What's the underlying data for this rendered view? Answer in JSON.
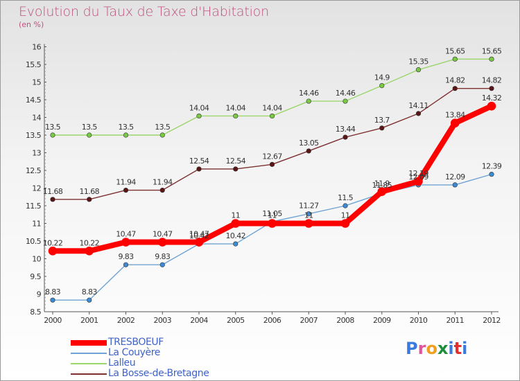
{
  "title": "Evolution du Taux de Taxe d'Habitation",
  "unit": "(en %)",
  "logo": "Proxiti",
  "logo_colors": [
    "#3a7be0",
    "#e0559b",
    "#f0a020",
    "#1c8f3a",
    "#3a7be0",
    "#e03030",
    "#3a7be0"
  ],
  "chart_data": {
    "type": "line",
    "x": [
      "2000",
      "2001",
      "2002",
      "2003",
      "2004",
      "2005",
      "2006",
      "2007",
      "2008",
      "2009",
      "2010",
      "2011",
      "2012"
    ],
    "ylim": [
      8.5,
      16
    ],
    "yticks": [
      "8.5",
      "9",
      "9.5",
      "10",
      "10.5",
      "11",
      "11.5",
      "12",
      "12.5",
      "13",
      "13.5",
      "14",
      "14.5",
      "15",
      "15.5",
      "16"
    ],
    "grid": false,
    "legend_position": "bottom-left",
    "series": [
      {
        "name": "TRESBOEUF",
        "color": "#ff0000",
        "marker": "#ff0000",
        "width": 8,
        "values": [
          10.22,
          10.22,
          10.47,
          10.47,
          10.47,
          11,
          11,
          11,
          11,
          11.9,
          12.19,
          13.84,
          14.32
        ]
      },
      {
        "name": "La Couyère",
        "color": "#6fa3d3",
        "marker": "#3c8ad2",
        "width": 1.4,
        "values": [
          8.83,
          8.83,
          9.83,
          9.83,
          10.42,
          10.42,
          11.05,
          11.27,
          11.5,
          11.85,
          12.09,
          12.09,
          12.39
        ]
      },
      {
        "name": "Lalleu",
        "color": "#9bd66b",
        "marker": "#7ac943",
        "width": 1.4,
        "values": [
          13.5,
          13.5,
          13.5,
          13.5,
          14.04,
          14.04,
          14.04,
          14.46,
          14.46,
          14.9,
          15.35,
          15.65,
          15.65
        ]
      },
      {
        "name": "La Bosse-de-Bretagne",
        "color": "#7d3030",
        "marker": "#5c1515",
        "width": 1.4,
        "values": [
          11.68,
          11.68,
          11.94,
          11.94,
          12.54,
          12.54,
          12.67,
          13.05,
          13.44,
          13.7,
          14.11,
          14.82,
          14.82
        ]
      }
    ],
    "data_labels": [
      [
        "10.22",
        "10.22",
        "10.47",
        "10.47",
        "10.47",
        "11",
        "11",
        "11",
        "11",
        "11.9",
        "12.19",
        "13.84",
        "14.32"
      ],
      [
        "8.83",
        "8.83",
        "9.83",
        "9.83",
        "10.42",
        "10.42",
        "11.05",
        "11.27",
        "11.5",
        "11.85",
        "12.09",
        "12.09",
        "12.39"
      ],
      [
        "13.5",
        "13.5",
        "13.5",
        "13.5",
        "14.04",
        "14.04",
        "14.04",
        "14.46",
        "14.46",
        "14.9",
        "15.35",
        "15.65",
        "15.65"
      ],
      [
        "11.68",
        "11.68",
        "11.94",
        "11.94",
        "12.54",
        "12.54",
        "12.67",
        "13.05",
        "13.44",
        "13.7",
        "14.11",
        "14.82",
        "14.82"
      ]
    ]
  }
}
